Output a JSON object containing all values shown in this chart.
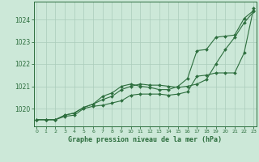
{
  "title": "Graphe pression niveau de la mer (hPa)",
  "background_color": "#cce8d8",
  "grid_color": "#aaccbb",
  "line_color": "#2d6e3e",
  "x_ticks": [
    0,
    1,
    2,
    3,
    4,
    5,
    6,
    7,
    8,
    9,
    10,
    11,
    12,
    13,
    14,
    15,
    16,
    17,
    18,
    19,
    20,
    21,
    22,
    23
  ],
  "y_ticks": [
    1020,
    1021,
    1022,
    1023,
    1024
  ],
  "ylim": [
    1019.2,
    1024.8
  ],
  "xlim": [
    -0.3,
    23.3
  ],
  "series1": [
    1019.5,
    1019.5,
    1019.5,
    1019.65,
    1019.7,
    1020.0,
    1020.1,
    1020.15,
    1020.25,
    1020.35,
    1020.6,
    1020.65,
    1020.65,
    1020.65,
    1020.6,
    1020.65,
    1020.75,
    1021.45,
    1021.5,
    1021.6,
    1021.6,
    1021.6,
    1022.5,
    1024.5
  ],
  "series2": [
    1019.5,
    1019.5,
    1019.5,
    1019.7,
    1019.8,
    1020.05,
    1020.2,
    1020.4,
    1020.55,
    1020.85,
    1021.0,
    1021.1,
    1021.05,
    1021.05,
    1021.0,
    1020.95,
    1021.0,
    1021.1,
    1021.3,
    1022.0,
    1022.65,
    1023.2,
    1023.85,
    1024.35
  ],
  "series3": [
    1019.5,
    1019.5,
    1019.5,
    1019.7,
    1019.8,
    1020.05,
    1020.2,
    1020.55,
    1020.7,
    1021.0,
    1021.1,
    1021.0,
    1020.95,
    1020.85,
    1020.85,
    1021.0,
    1021.35,
    1022.6,
    1022.65,
    1023.2,
    1023.25,
    1023.3,
    1024.05,
    1024.4
  ]
}
